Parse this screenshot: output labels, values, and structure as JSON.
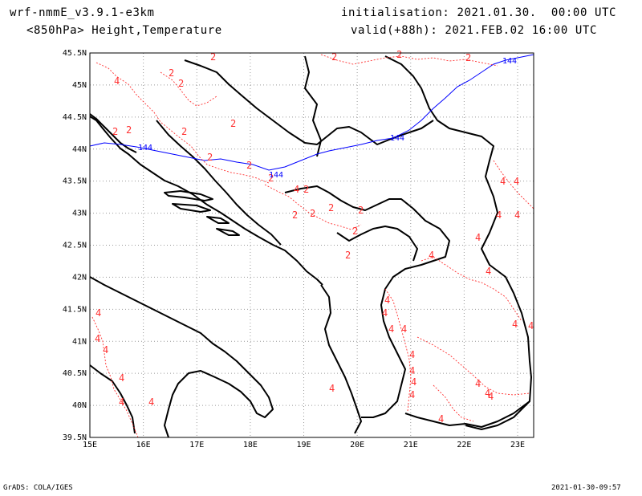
{
  "header": {
    "model": "wrf-nmmE_v3.9.1-e3km",
    "level_desc": "<850hPa> Height,Temperature",
    "init": "initialisation: 2021.01.30.  00:00 UTC",
    "valid": "valid(+88h): 2021.FEB.02 16:00 UTC"
  },
  "footer": {
    "left": "GrADS: COLA/IGES",
    "right": "2021-01-30-09:57"
  },
  "map": {
    "lat_labels": [
      "45.5N",
      "45N",
      "44.5N",
      "44N",
      "43.5N",
      "43N",
      "42.5N",
      "42N",
      "41.5N",
      "41N",
      "40.5N",
      "40N",
      "39.5N"
    ],
    "lon_labels": [
      "15E",
      "16E",
      "17E",
      "18E",
      "19E",
      "20E",
      "21E",
      "22E",
      "23E"
    ],
    "lat_range": [
      39.5,
      45.5
    ],
    "lon_range": [
      15.0,
      23.3
    ],
    "grid": true,
    "coastline_color": "#000000",
    "height_contour_color": "#0000ff",
    "temperature_contour_color": "#ff3030",
    "height_contour_labels": [
      "144",
      "144",
      "144",
      "144"
    ],
    "temperature_labels": [
      "2",
      "2",
      "2",
      "2",
      "2",
      "2",
      "2",
      "2",
      "2",
      "2",
      "2",
      "2",
      "2",
      "2",
      "2",
      "2",
      "2",
      "2",
      "2",
      "2",
      "4",
      "4",
      "4",
      "4",
      "4",
      "4",
      "4",
      "4",
      "4",
      "4",
      "4",
      "4",
      "4",
      "4",
      "4",
      "4",
      "4",
      "4",
      "4",
      "4",
      "4",
      "4",
      "4",
      "4",
      "4",
      "4",
      "4",
      "4",
      "4",
      "4"
    ]
  }
}
